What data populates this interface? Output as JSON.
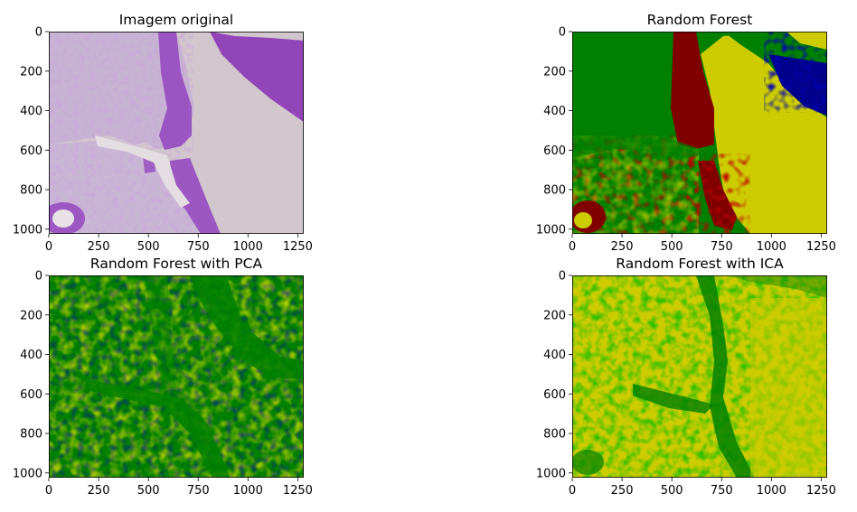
{
  "chart_data": [
    {
      "type": "heatmap",
      "title": "Imagem original",
      "image": "histology-he-stain",
      "xlim": [
        0,
        1280
      ],
      "ylim": [
        1024,
        0
      ],
      "xticks": [
        "0",
        "250",
        "500",
        "750",
        "1000",
        "1250"
      ],
      "xtick_values": [
        0,
        250,
        500,
        750,
        1000,
        1250
      ],
      "yticks": [
        "0",
        "200",
        "400",
        "600",
        "800",
        "1000"
      ],
      "ytick_values": [
        0,
        200,
        400,
        600,
        800,
        1000
      ]
    },
    {
      "type": "heatmap",
      "title": "Random Forest",
      "image": "segmentation-4-class",
      "xlim": [
        0,
        1280
      ],
      "ylim": [
        1024,
        0
      ],
      "xticks": [
        "0",
        "250",
        "500",
        "750",
        "1000",
        "1250"
      ],
      "xtick_values": [
        0,
        250,
        500,
        750,
        1000,
        1250
      ],
      "yticks": [
        "0",
        "200",
        "400",
        "600",
        "800",
        "1000"
      ],
      "ytick_values": [
        0,
        200,
        400,
        600,
        800,
        1000
      ]
    },
    {
      "type": "heatmap",
      "title": "Random Forest with PCA",
      "image": "segmentation-pca",
      "xlim": [
        0,
        1280
      ],
      "ylim": [
        1024,
        0
      ],
      "xticks": [
        "0",
        "250",
        "500",
        "750",
        "1000",
        "1250"
      ],
      "xtick_values": [
        0,
        250,
        500,
        750,
        1000,
        1250
      ],
      "yticks": [
        "0",
        "200",
        "400",
        "600",
        "800",
        "1000"
      ],
      "ytick_values": [
        0,
        200,
        400,
        600,
        800,
        1000
      ]
    },
    {
      "type": "heatmap",
      "title": "Random Forest with ICA",
      "image": "segmentation-ica",
      "xlim": [
        0,
        1280
      ],
      "ylim": [
        1024,
        0
      ],
      "xticks": [
        "0",
        "250",
        "500",
        "750",
        "1000",
        "1250"
      ],
      "xtick_values": [
        0,
        250,
        500,
        750,
        1000,
        1250
      ],
      "yticks": [
        "0",
        "200",
        "400",
        "600",
        "800",
        "1000"
      ],
      "ytick_values": [
        0,
        200,
        400,
        600,
        800,
        1000
      ]
    }
  ],
  "colors": {
    "green": "#008000",
    "yellow": "#cccc00",
    "dark_red": "#800000",
    "navy": "#00008b",
    "tissue_bg": "#d4c8cc",
    "tissue_light": "#c8b4d4",
    "tissue_purple": "#9a55c0"
  }
}
